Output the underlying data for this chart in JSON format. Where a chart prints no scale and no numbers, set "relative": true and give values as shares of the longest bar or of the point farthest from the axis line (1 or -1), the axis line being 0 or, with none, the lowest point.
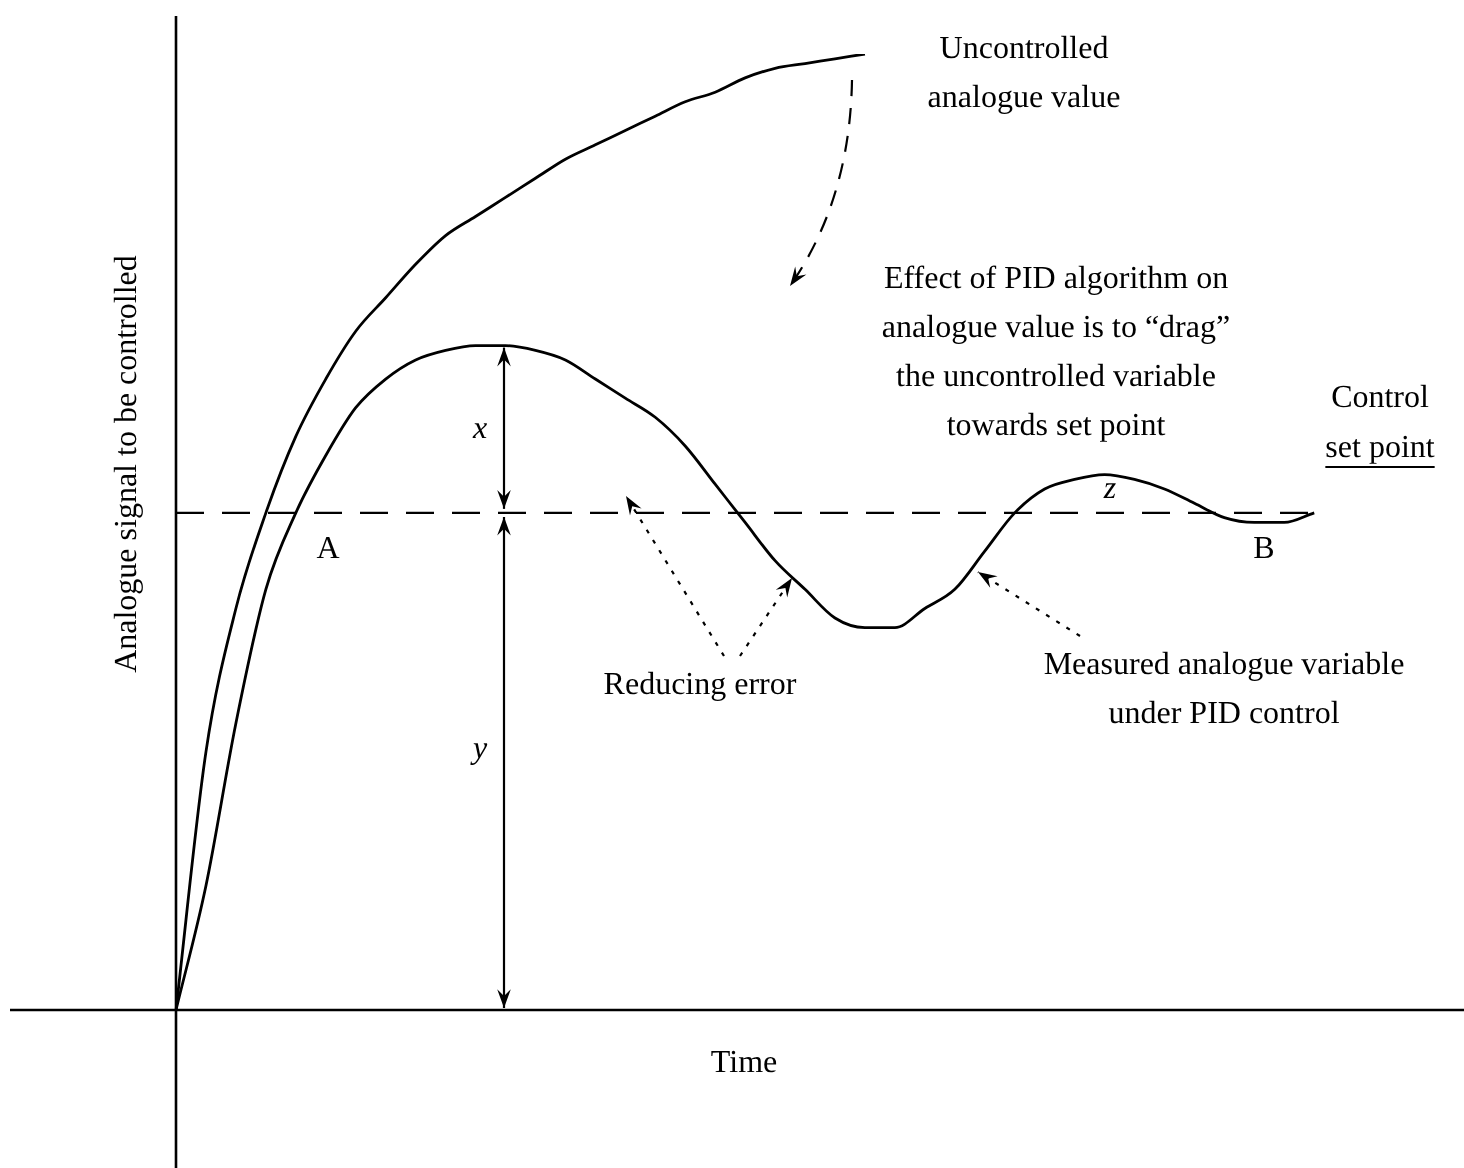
{
  "chart_data": {
    "type": "line",
    "relative": true,
    "xlabel": "Time",
    "ylabel": "Analogue signal to be controlled",
    "categories": [
      null,
      null,
      null,
      null,
      null,
      null,
      null,
      null,
      null,
      null,
      null,
      null,
      null,
      null,
      null,
      null,
      null,
      null,
      null,
      null,
      null,
      null,
      null,
      null,
      null,
      null,
      null,
      null,
      null,
      null,
      null,
      null,
      null,
      null,
      null,
      null,
      null,
      null,
      null,
      null,
      null,
      null,
      null,
      null
    ],
    "series": [
      {
        "color": "#000000",
        "values": [
          0,
          0.27,
          0.42,
          0.52,
          0.6,
          0.66,
          0.71,
          0.745,
          0.78,
          0.81,
          0.83,
          0.85,
          0.87,
          0.89,
          0.905,
          0.92,
          0.935,
          0.95,
          0.96,
          0.975,
          0.985,
          0.99,
          0.995,
          1,
          null,
          null,
          null,
          null,
          null,
          null,
          null,
          null,
          null,
          null,
          null,
          null,
          null,
          null,
          null,
          null,
          null,
          null,
          null,
          null
        ]
      },
      {
        "color": "#000000",
        "values": [
          0,
          0.13,
          0.3,
          0.44,
          0.52,
          0.58,
          0.63,
          0.66,
          0.68,
          0.69,
          0.695,
          0.695,
          0.69,
          0.68,
          0.66,
          0.64,
          0.62,
          0.59,
          0.55,
          0.51,
          0.47,
          0.44,
          0.41,
          0.4,
          0.4,
          0.42,
          0.44,
          0.48,
          0.52,
          0.545,
          0.555,
          0.56,
          0.555,
          0.545,
          0.53,
          0.515,
          0.51,
          0.51,
          0.52,
          null,
          null,
          null,
          null,
          null
        ]
      }
    ],
    "ref_lines": [
      {
        "axis": "y",
        "value": 0.52,
        "label": "Control set point",
        "color": "#000000",
        "line_style": "dashed"
      }
    ],
    "annotations": [
      "Uncontrolled analogue value",
      "Effect of PID algorithm on analogue value is to “drag” the uncontrolled variable towards set point",
      "Reducing error",
      "Measured analogue variable under PID control",
      "A",
      "B",
      "x",
      "y",
      "z"
    ],
    "legend": false,
    "marker": "none",
    "line_style": "solid"
  }
}
